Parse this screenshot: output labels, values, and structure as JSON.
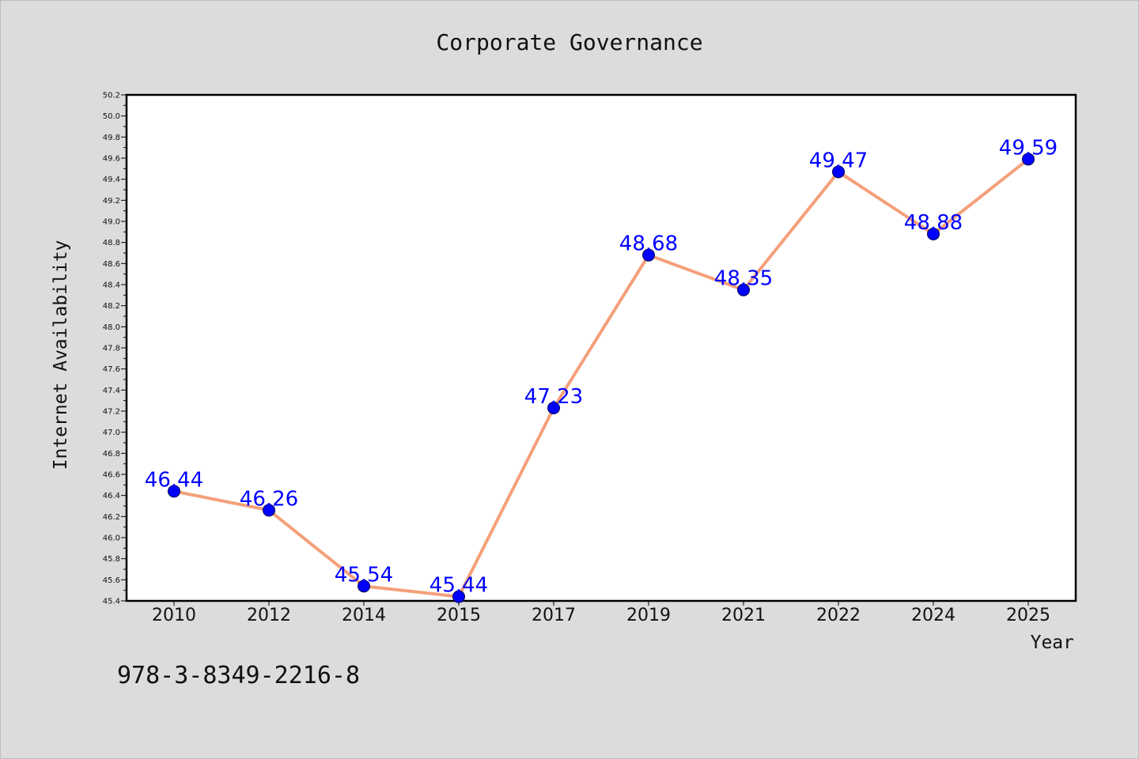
{
  "chart_data": {
    "type": "line",
    "title": "Corporate Governance",
    "xlabel": "Year",
    "ylabel": "Internet Availability",
    "categories": [
      "2010",
      "2012",
      "2014",
      "2015",
      "2017",
      "2019",
      "2021",
      "2022",
      "2024",
      "2025"
    ],
    "series": [
      {
        "values": [
          46.44,
          46.26,
          45.54,
          45.44,
          47.23,
          48.68,
          48.35,
          49.47,
          48.88,
          49.59
        ],
        "labels": [
          "46.44",
          "46.26",
          "45.54",
          "45.44",
          "47.23",
          "48.68",
          "48.35",
          "49.47",
          "48.88",
          "49.59"
        ],
        "line_color": "#f4a07a",
        "marker_color": "#0000ff"
      }
    ],
    "ylim": [
      45.4,
      50.2
    ],
    "y_ticks": [
      "45.4",
      "45.6",
      "45.8",
      "46.0",
      "46.2",
      "46.4",
      "46.6",
      "46.8",
      "47.0",
      "47.2",
      "47.4",
      "47.6",
      "47.8",
      "48.0",
      "48.2",
      "48.4",
      "48.6",
      "48.8",
      "49.0",
      "49.2",
      "49.4",
      "49.6",
      "49.8",
      "50.0",
      "50.2"
    ],
    "grid": false,
    "legend": "none"
  },
  "footer": {
    "isbn": "978-3-8349-2216-8"
  }
}
